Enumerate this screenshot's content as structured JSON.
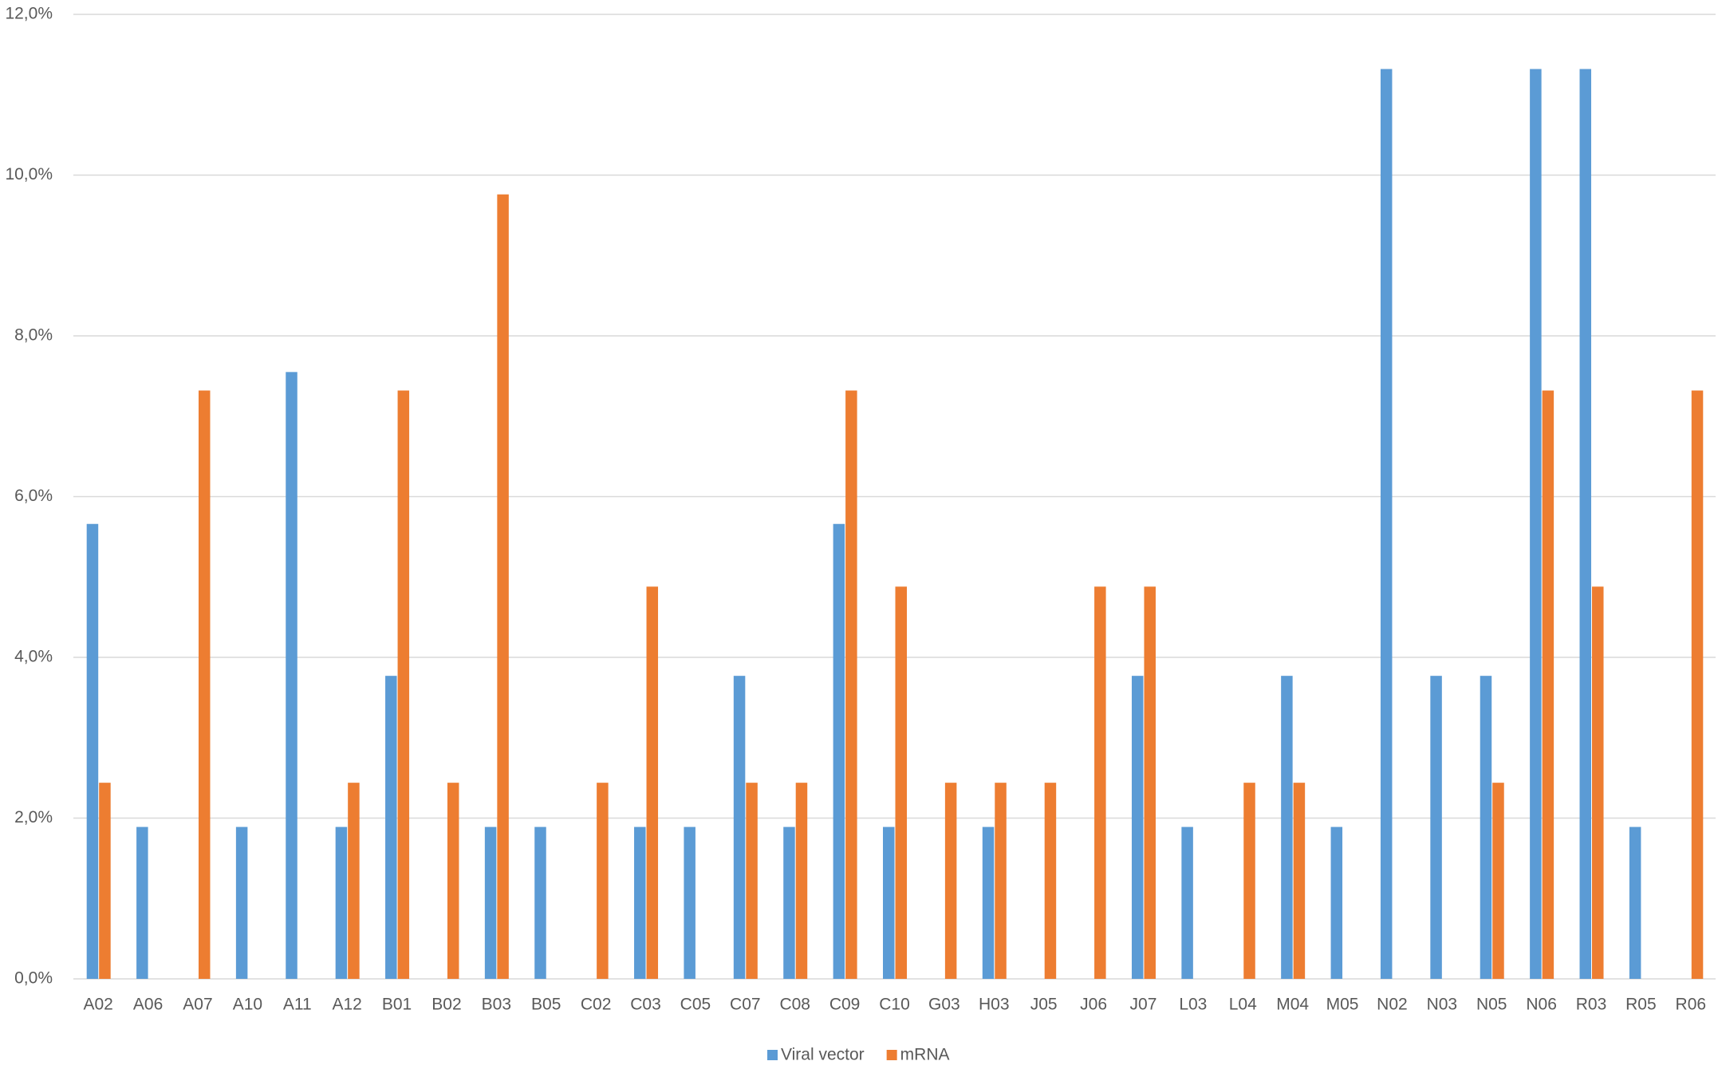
{
  "chart_data": {
    "type": "bar",
    "categories": [
      "A02",
      "A06",
      "A07",
      "A10",
      "A11",
      "A12",
      "B01",
      "B02",
      "B03",
      "B05",
      "C02",
      "C03",
      "C05",
      "C07",
      "C08",
      "C09",
      "C10",
      "G03",
      "H03",
      "J05",
      "J06",
      "J07",
      "L03",
      "L04",
      "M04",
      "M05",
      "N02",
      "N03",
      "N05",
      "N06",
      "R03",
      "R05",
      "R06"
    ],
    "series": [
      {
        "name": "Viral vector",
        "color": "#5b9bd5",
        "values": [
          5.66,
          1.89,
          0,
          1.89,
          7.55,
          1.89,
          3.77,
          0,
          1.89,
          1.89,
          0,
          1.89,
          1.89,
          3.77,
          1.89,
          5.66,
          1.89,
          0,
          1.89,
          0,
          0,
          3.77,
          1.89,
          0,
          3.77,
          1.89,
          11.32,
          3.77,
          3.77,
          11.32,
          11.32,
          1.89,
          0
        ]
      },
      {
        "name": "mRNA",
        "color": "#ed7d31",
        "values": [
          2.44,
          0,
          7.32,
          0,
          0,
          2.44,
          7.32,
          2.44,
          9.76,
          0,
          2.44,
          4.88,
          0,
          2.44,
          2.44,
          7.32,
          4.88,
          2.44,
          2.44,
          2.44,
          4.88,
          4.88,
          0,
          2.44,
          2.44,
          0,
          0,
          0,
          2.44,
          7.32,
          4.88,
          0,
          7.32
        ]
      }
    ],
    "ylim": [
      0,
      12
    ],
    "yticks": [
      {
        "value": 0,
        "label": "0,0%"
      },
      {
        "value": 2,
        "label": "2,0%"
      },
      {
        "value": 4,
        "label": "4,0%"
      },
      {
        "value": 6,
        "label": "6,0%"
      },
      {
        "value": 8,
        "label": "8,0%"
      },
      {
        "value": 10,
        "label": "10,0%"
      },
      {
        "value": 12,
        "label": "12,0%"
      }
    ],
    "grid": true,
    "legend": "bottom"
  }
}
